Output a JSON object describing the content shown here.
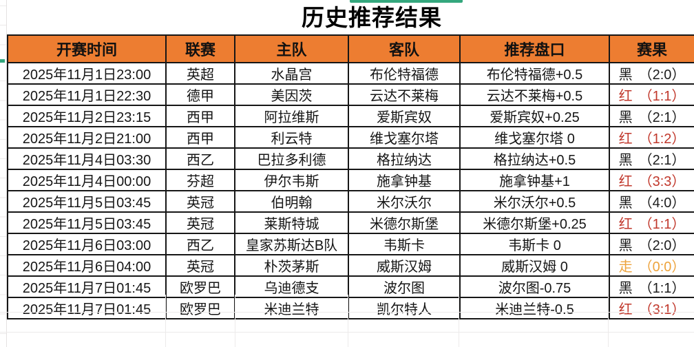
{
  "title": "历史推荐结果",
  "colors": {
    "header_bg": "#ED7D31",
    "result_black": "#1c1c1c",
    "result_red": "#c1382c",
    "result_draw": "#eda33c",
    "accent_green": "#34a77d"
  },
  "table": {
    "headers": [
      "开赛时间",
      "联赛",
      "主队",
      "客队",
      "推荐盘口",
      "赛果"
    ],
    "rows": [
      {
        "time": "2025年11月1日23:00",
        "league": "英超",
        "home": "水晶宫",
        "away": "布伦特福德",
        "handicap": "布伦特福德+0.5",
        "result": "黑",
        "score": "（2:0）",
        "result_color": "black"
      },
      {
        "time": "2025年11月1日22:30",
        "league": "德甲",
        "home": "美因茨",
        "away": "云达不莱梅",
        "handicap": "云达不莱梅+0.5",
        "result": "红",
        "score": "（1:1）",
        "result_color": "red"
      },
      {
        "time": "2025年11月2日23:15",
        "league": "西甲",
        "home": "阿拉维斯",
        "away": "爱斯宾奴",
        "handicap": "爱斯宾奴+0.25",
        "result": "黑",
        "score": "（2:1）",
        "result_color": "black"
      },
      {
        "time": "2025年11月2日21:00",
        "league": "西甲",
        "home": "利云特",
        "away": "维戈塞尔塔",
        "handicap": "维戈塞尔塔 0",
        "result": "红",
        "score": "（1:2）",
        "result_color": "red"
      },
      {
        "time": "2025年11月4日03:30",
        "league": "西乙",
        "home": "巴拉多利德",
        "away": "格拉纳达",
        "handicap": "格拉纳达+0.5",
        "result": "黑",
        "score": "（2:1）",
        "result_color": "black"
      },
      {
        "time": "2025年11月4日00:00",
        "league": "芬超",
        "home": "伊尔韦斯",
        "away": "施拿钟基",
        "handicap": "施拿钟基+1",
        "result": "红",
        "score": "（3:3）",
        "result_color": "red"
      },
      {
        "time": "2025年11月5日03:45",
        "league": "英冠",
        "home": "伯明翰",
        "away": "米尔沃尔",
        "handicap": "米尔沃尔+0.5",
        "result": "黑",
        "score": "（4:0）",
        "result_color": "black"
      },
      {
        "time": "2025年11月5日03:45",
        "league": "英冠",
        "home": "莱斯特城",
        "away": "米德尔斯堡",
        "handicap": "米德尔斯堡+0.25",
        "result": "红",
        "score": "（1:1）",
        "result_color": "red"
      },
      {
        "time": "2025年11月6日03:00",
        "league": "西乙",
        "home": "皇家苏斯达B队",
        "away": "韦斯卡",
        "handicap": "韦斯卡 0",
        "result": "黑",
        "score": "（2:0）",
        "result_color": "black"
      },
      {
        "time": "2025年11月6日04:00",
        "league": "英冠",
        "home": "朴茨茅斯",
        "away": "威斯汉姆",
        "handicap": "威斯汉姆 0",
        "result": "走",
        "score": "（0:0）",
        "result_color": "draw"
      },
      {
        "time": "2025年11月7日01:45",
        "league": "欧罗巴",
        "home": "乌迪德支",
        "away": "波尔图",
        "handicap": "波尔图-0.75",
        "result": "黑",
        "score": "（1:1）",
        "result_color": "black"
      },
      {
        "time": "2025年11月7日01:45",
        "league": "欧罗巴",
        "home": "米迪兰特",
        "away": "凯尔特人",
        "handicap": "米迪兰特-0.5",
        "result": "红",
        "score": "（3:1）",
        "result_color": "red"
      }
    ]
  }
}
